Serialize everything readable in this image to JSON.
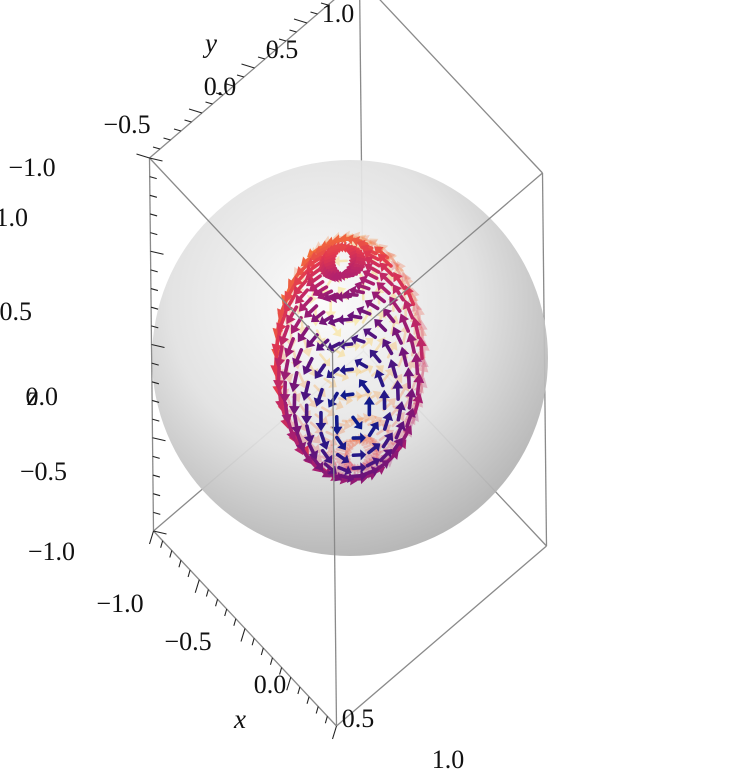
{
  "chart_data": {
    "type": "vector-field-3d",
    "title": "",
    "surface": "unit-sphere",
    "box": {
      "xlim": [
        -1.0,
        1.0
      ],
      "ylim": [
        -1.0,
        1.0
      ],
      "zlim": [
        -1.0,
        1.0
      ]
    },
    "axes": {
      "x": {
        "label": "x",
        "ticks": [
          -1.0,
          -0.5,
          0.0,
          0.5,
          1.0
        ],
        "tick_labels": [
          "−1.0",
          "−0.5",
          "0.0",
          "0.5",
          "1.0"
        ]
      },
      "y": {
        "label": "y",
        "ticks": [
          -1.0,
          -0.5,
          0.0,
          0.5,
          1.0
        ],
        "tick_labels": [
          "−1.0",
          "−0.5",
          "0.0",
          "0.5",
          "1.0"
        ]
      },
      "z": {
        "label": "z",
        "ticks": [
          -1.0,
          -0.5,
          0.0,
          0.5,
          1.0
        ],
        "tick_labels": [
          "−1.0",
          "−0.5",
          "0.0",
          "0.5",
          "1.0"
        ]
      }
    },
    "field": {
      "description_of_flow": "tangent flow rotating about the (1,0,0) axis",
      "color_scale": [
        "#0a1a8c",
        "#6a137a",
        "#b0206f",
        "#e2384f",
        "#f26a3c",
        "#f99b2c",
        "#ffd21a"
      ]
    },
    "grid": false,
    "legend": "none"
  }
}
